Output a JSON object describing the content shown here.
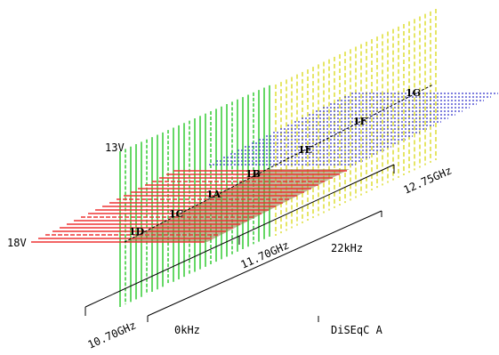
{
  "polarization": {
    "vertical": "13V",
    "horizontal": "18V"
  },
  "frequency": {
    "start": "10.70GHz",
    "mid": "11.70GHz",
    "end": "12.75GHz"
  },
  "tone": {
    "low": "0kHz",
    "high": "22kHz"
  },
  "diseqc": "DiSEqC A",
  "positions": [
    "1D",
    "1C",
    "1A",
    "1B",
    "1E",
    "1F",
    "1G"
  ],
  "colors": {
    "vertical_low": "#33cc33",
    "vertical_high": "#dddd33",
    "horizontal_low": "#ee3333",
    "horizontal_high": "#3333cc",
    "overlap_fill": "#8a7a40",
    "axis": "#000000"
  }
}
